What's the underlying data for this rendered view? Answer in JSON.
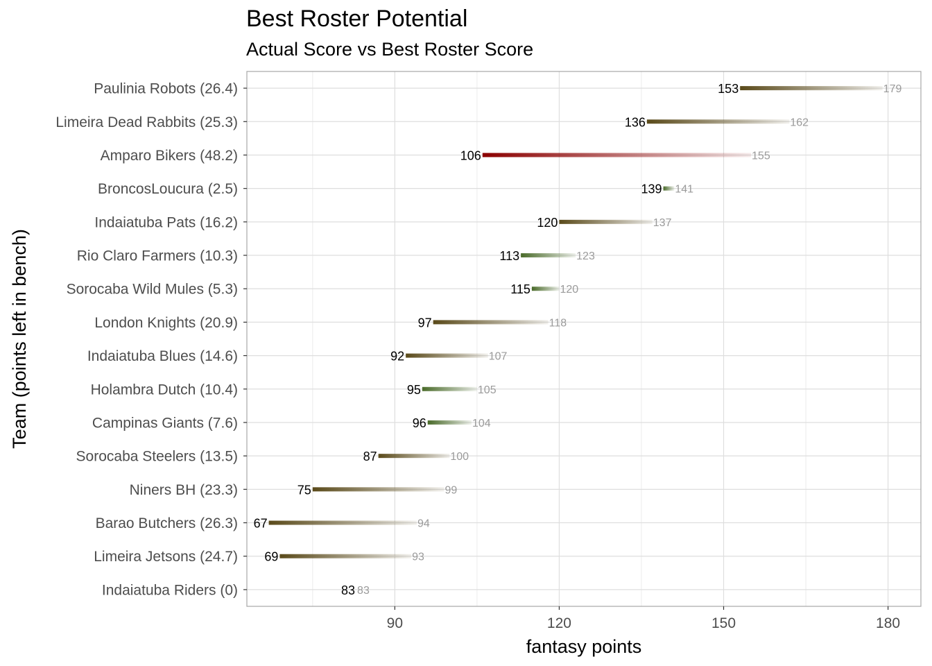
{
  "chart_data": {
    "type": "dumbbell",
    "title": "Best Roster Potential",
    "subtitle": "Actual Score vs Best Roster Score",
    "xlabel": "fantasy points",
    "ylabel": "Team (points left in bench)",
    "xlim": [
      63,
      186
    ],
    "xticks": [
      90,
      120,
      150,
      180
    ],
    "grid": true,
    "colors": {
      "large_gap": "#8b0000",
      "medium_gap": "#5a4a1a",
      "small_gap": "#4a6b2a"
    },
    "categories": [
      "Paulinia Robots (26.4)",
      "Limeira Dead Rabbits (25.3)",
      "Amparo Bikers (48.2)",
      "BroncosLoucura (2.5)",
      "Indaiatuba Pats (16.2)",
      "Rio Claro Farmers (10.3)",
      "Sorocaba Wild Mules (5.3)",
      "London Knights (20.9)",
      "Indaiatuba Blues (14.6)",
      "Holambra Dutch (10.4)",
      "Campinas Giants (7.6)",
      "Sorocaba Steelers (13.5)",
      "Niners BH (23.3)",
      "Barao Butchers (26.3)",
      "Limeira Jetsons (24.7)",
      "Indaiatuba Riders (0)"
    ],
    "series": [
      {
        "name": "actual",
        "values": [
          153,
          136,
          106,
          139,
          120,
          113,
          115,
          97,
          92,
          95,
          96,
          87,
          75,
          67,
          69,
          83
        ],
        "labels": [
          "153",
          "136",
          "106",
          "139",
          "120",
          "113",
          "115",
          "97",
          "92",
          "95",
          "96",
          "87",
          "75",
          "67",
          "69",
          "83"
        ]
      },
      {
        "name": "best",
        "values": [
          179,
          162,
          155,
          141,
          137,
          123,
          120,
          118,
          107,
          105,
          104,
          100,
          99,
          94,
          93,
          83
        ],
        "labels": [
          "179",
          "162",
          "155",
          "141",
          "137",
          "123",
          "120",
          "118",
          "107",
          "105",
          "104",
          "100",
          "99",
          "94",
          "93",
          "83"
        ]
      }
    ]
  }
}
